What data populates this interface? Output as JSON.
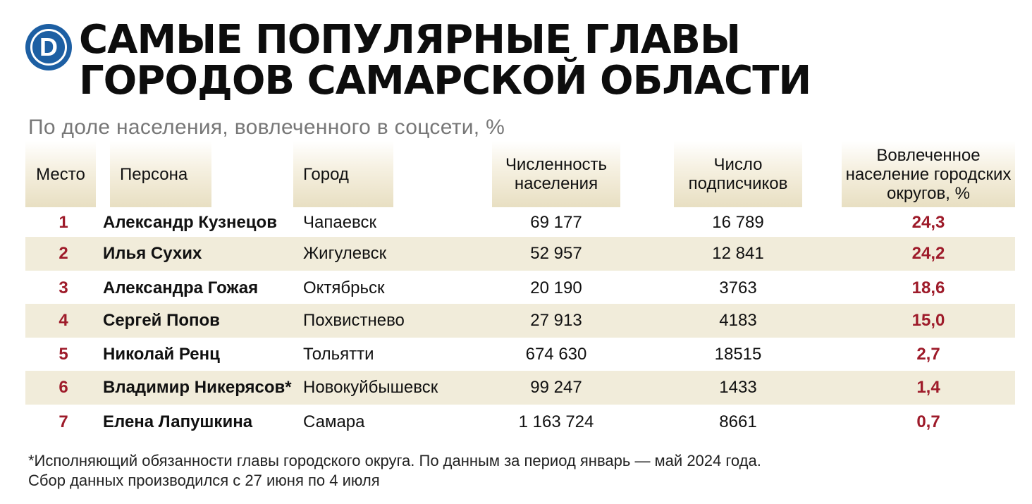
{
  "logo": {
    "letter": "D"
  },
  "title_lines": [
    "САМЫЕ ПОПУЛЯРНЫЕ ГЛАВЫ",
    "ГОРОДОВ САМАРСКОЙ ОБЛАСТИ"
  ],
  "subtitle": "По доле населения, вовлеченного в соцсети, %",
  "columns": {
    "rank": "Место",
    "person": "Персона",
    "city": "Город",
    "population": [
      "Численность",
      "населения"
    ],
    "subscribers": [
      "Число",
      "подписчиков"
    ],
    "share": [
      "Вовлеченное",
      "население городских",
      "округов, %"
    ]
  },
  "chart_data": {
    "type": "table",
    "title": "САМЫЕ ПОПУЛЯРНЫЕ ГЛАВЫ ГОРОДОВ САМАРСКОЙ ОБЛАСТИ",
    "subtitle": "По доле населения, вовлеченного в соцсети, %",
    "rows": [
      {
        "rank": "1",
        "person": "Александр Кузнецов",
        "city": "Чапаевск",
        "population": "69 177",
        "subscribers": "16 789",
        "share": "24,3"
      },
      {
        "rank": "2",
        "person": "Илья Сухих",
        "city": "Жигулевск",
        "population": "52 957",
        "subscribers": "12 841",
        "share": "24,2"
      },
      {
        "rank": "3",
        "person": "Александра Гожая",
        "city": "Октябрьск",
        "population": "20 190",
        "subscribers": "3763",
        "share": "18,6"
      },
      {
        "rank": "4",
        "person": "Сергей Попов",
        "city": "Похвистнево",
        "population": "27 913",
        "subscribers": "4183",
        "share": "15,0"
      },
      {
        "rank": "5",
        "person": "Николай Ренц",
        "city": "Тольятти",
        "population": "674 630",
        "subscribers": "18515",
        "share": "2,7"
      },
      {
        "rank": "6",
        "person": "Владимир Никерясов*",
        "city": "Новокуйбышевск",
        "population": "99 247",
        "subscribers": "1433",
        "share": "1,4"
      },
      {
        "rank": "7",
        "person": "Елена Лапушкина",
        "city": "Самара",
        "population": "1 163 724",
        "subscribers": "8661",
        "share": "0,7"
      }
    ]
  },
  "footnote": [
    "*Исполняющий обязанности главы городского округа. По данным за период январь — май 2024 года.",
    "Сбор данных производился с 27 июня по 4 июля"
  ]
}
